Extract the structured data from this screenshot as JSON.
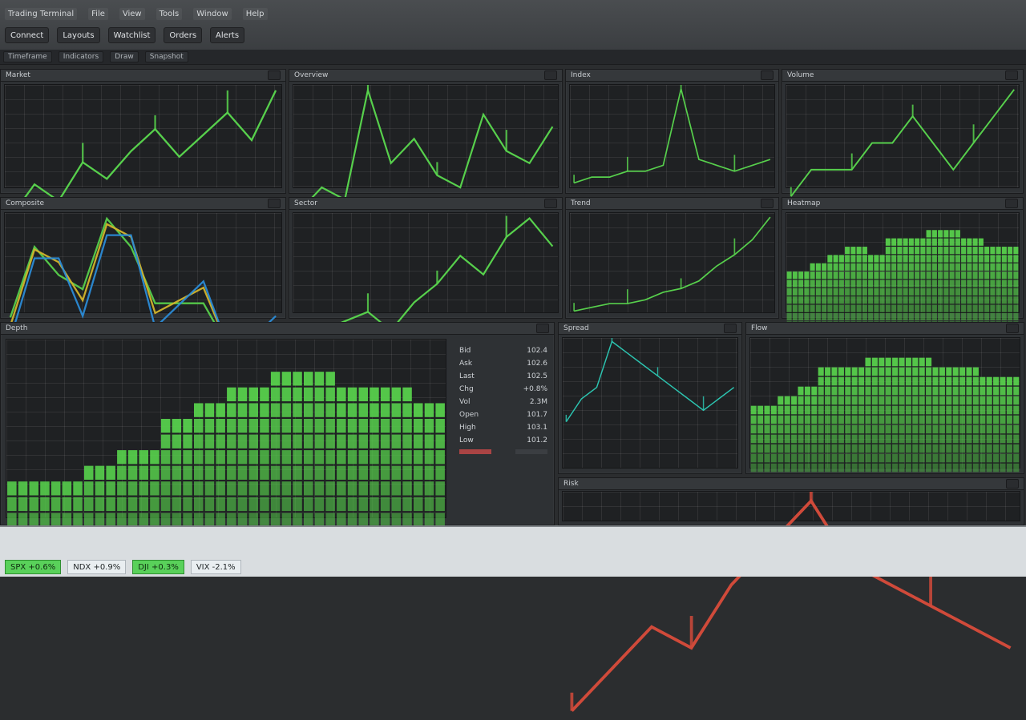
{
  "app": {
    "title": "Trading Terminal",
    "menu": [
      "File",
      "View",
      "Tools",
      "Window",
      "Help"
    ],
    "toolbar": [
      "Connect",
      "Layouts",
      "Watchlist",
      "Orders",
      "Alerts"
    ],
    "subbar": [
      "Timeframe",
      "Indicators",
      "Draw",
      "Snapshot"
    ]
  },
  "panels": [
    {
      "id": "p1",
      "title": "Market",
      "values": [
        12,
        18,
        15,
        22,
        19,
        24,
        28,
        23,
        27,
        31,
        26,
        35
      ]
    },
    {
      "id": "p2",
      "title": "Overview",
      "values": [
        10,
        12,
        11,
        20,
        14,
        16,
        13,
        12,
        18,
        15,
        14,
        17
      ]
    },
    {
      "id": "p3",
      "title": "Index",
      "values": [
        8,
        9,
        9,
        10,
        10,
        11,
        24,
        12,
        11,
        10,
        11,
        12
      ]
    },
    {
      "id": "p4",
      "title": "Volume",
      "values": [
        5,
        6,
        6,
        6,
        7,
        7,
        8,
        7,
        6,
        7,
        8,
        9
      ]
    },
    {
      "id": "p5",
      "title": "Composite",
      "values": [
        18,
        22,
        19,
        20,
        24,
        21,
        19,
        18,
        17,
        16,
        15,
        14
      ]
    },
    {
      "id": "p6",
      "title": "Sector",
      "values": [
        9,
        10,
        11,
        12,
        10,
        13,
        15,
        18,
        16,
        20,
        22,
        19
      ]
    },
    {
      "id": "p7",
      "title": "Trend",
      "values": [
        6,
        7,
        8,
        8,
        9,
        11,
        12,
        14,
        18,
        21,
        25,
        31
      ]
    },
    {
      "id": "p8",
      "title": "Heatmap",
      "values": [
        22,
        24,
        26,
        30,
        28,
        32,
        34,
        36,
        35,
        33,
        31,
        29
      ]
    },
    {
      "id": "p9",
      "title": "Depth",
      "values": [
        14,
        16,
        18,
        22,
        26,
        31,
        33,
        35,
        36,
        34,
        32,
        30
      ]
    },
    {
      "id": "p10",
      "title": "Spread",
      "values": [
        9,
        11,
        12,
        16,
        15,
        14,
        13,
        12,
        11,
        10,
        11,
        12
      ]
    },
    {
      "id": "p11",
      "title": "Flow",
      "values": [
        18,
        22,
        25,
        29,
        30,
        31,
        32,
        31,
        30,
        29,
        28,
        27
      ]
    },
    {
      "id": "p12",
      "title": "Risk",
      "values": [
        6,
        8,
        10,
        9,
        12,
        14,
        16,
        13,
        12,
        11,
        10,
        9
      ]
    }
  ],
  "sidebar": {
    "items": [
      {
        "label": "Bid",
        "value": "102.4"
      },
      {
        "label": "Ask",
        "value": "102.6"
      },
      {
        "label": "Last",
        "value": "102.5"
      },
      {
        "label": "Chg",
        "value": "+0.8%"
      },
      {
        "label": "Vol",
        "value": "2.3M"
      },
      {
        "label": "Open",
        "value": "101.7"
      },
      {
        "label": "High",
        "value": "103.1"
      },
      {
        "label": "Low",
        "value": "101.2"
      }
    ]
  },
  "ticker": [
    {
      "label": "SPX",
      "value": "+0.6%"
    },
    {
      "label": "NDX",
      "value": "+0.9%"
    },
    {
      "label": "DJI",
      "value": "+0.3%"
    },
    {
      "label": "VIX",
      "value": "-2.1%"
    }
  ],
  "colors": {
    "accent": "#57d04c",
    "accent2": "#2cc5b1",
    "warn": "#d04a3a",
    "yellow": "#d2b42c",
    "blue": "#2b8bd6"
  }
}
